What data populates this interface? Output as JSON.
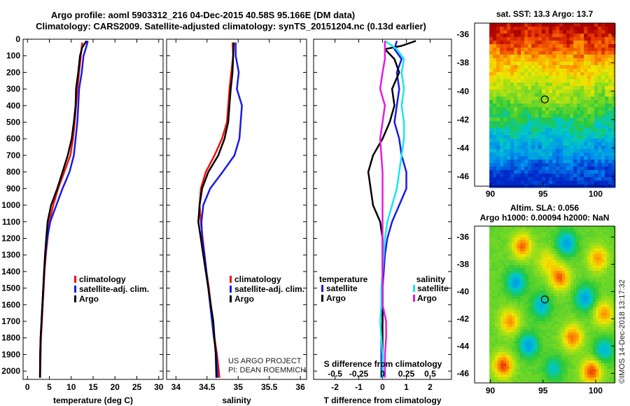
{
  "title": {
    "line1": "Argo profile: aoml 5903312_216 04-Dec-2015 40.58S 95.166E (DM data)",
    "line2": "Climatology: CARS2009. Satellite-adjusted climatology: synTS_20151204.nc (0.13d earlier)"
  },
  "colors": {
    "climatology": "#ee1111",
    "satellite": "#1a1ae6",
    "argo": "#000000",
    "satellite_salinity": "#18e6f0",
    "argo_salinity": "#e61ae6"
  },
  "chart_data": [
    {
      "type": "line",
      "panel": "temperature",
      "xlabel": "temperature (deg C)",
      "ylabel": "",
      "xlim": [
        -1,
        31
      ],
      "ylim": [
        2050,
        0
      ],
      "x_ticks": [
        "0",
        "5",
        "10",
        "15",
        "20",
        "25",
        "30"
      ],
      "y_ticks": [
        "0",
        "100",
        "200",
        "300",
        "400",
        "500",
        "600",
        "700",
        "800",
        "900",
        "1000",
        "1100",
        "1200",
        "1300",
        "1400",
        "1500",
        "1600",
        "1700",
        "1800",
        "1900",
        "2000"
      ],
      "legend": [
        "climatology",
        "satellite-adj. clim.",
        "Argo"
      ],
      "series": [
        {
          "name": "climatology",
          "color": "#ee1111",
          "points": [
            [
              12.5,
              20
            ],
            [
              12.2,
              100
            ],
            [
              11.8,
              200
            ],
            [
              11.4,
              300
            ],
            [
              11.1,
              400
            ],
            [
              10.8,
              500
            ],
            [
              10.4,
              600
            ],
            [
              9.8,
              700
            ],
            [
              8.4,
              800
            ],
            [
              7.0,
              900
            ],
            [
              5.9,
              1000
            ],
            [
              5.0,
              1100
            ],
            [
              4.6,
              1200
            ],
            [
              4.2,
              1300
            ],
            [
              3.9,
              1400
            ],
            [
              3.7,
              1500
            ],
            [
              3.5,
              1600
            ],
            [
              3.3,
              1700
            ],
            [
              3.1,
              1800
            ],
            [
              3.0,
              1900
            ],
            [
              2.9,
              2040
            ]
          ]
        },
        {
          "name": "satellite-adj. clim.",
          "color": "#1a1ae6",
          "points": [
            [
              13.8,
              10
            ],
            [
              13.4,
              50
            ],
            [
              12.8,
              100
            ],
            [
              12.4,
              200
            ],
            [
              11.8,
              300
            ],
            [
              11.6,
              400
            ],
            [
              11.4,
              500
            ],
            [
              11.0,
              600
            ],
            [
              10.6,
              700
            ],
            [
              9.6,
              800
            ],
            [
              8.0,
              900
            ],
            [
              6.6,
              1000
            ],
            [
              5.2,
              1100
            ],
            [
              4.5,
              1200
            ],
            [
              4.1,
              1300
            ],
            [
              3.8,
              1400
            ],
            [
              3.6,
              1500
            ],
            [
              3.4,
              1600
            ],
            [
              3.2,
              1700
            ],
            [
              3.0,
              1800
            ],
            [
              2.9,
              1900
            ],
            [
              2.85,
              2040
            ]
          ]
        },
        {
          "name": "Argo",
          "color": "#000000",
          "points": [
            [
              13.5,
              10
            ],
            [
              12.5,
              50
            ],
            [
              12.0,
              100
            ],
            [
              11.6,
              200
            ],
            [
              11.1,
              300
            ],
            [
              11.0,
              400
            ],
            [
              10.6,
              500
            ],
            [
              10.1,
              600
            ],
            [
              9.2,
              700
            ],
            [
              8.0,
              800
            ],
            [
              6.8,
              900
            ],
            [
              5.4,
              1000
            ],
            [
              4.6,
              1100
            ],
            [
              4.3,
              1200
            ],
            [
              4.0,
              1300
            ],
            [
              3.8,
              1400
            ],
            [
              3.6,
              1500
            ],
            [
              3.4,
              1600
            ],
            [
              3.2,
              1700
            ],
            [
              3.0,
              1800
            ],
            [
              2.9,
              1900
            ],
            [
              2.85,
              2040
            ]
          ]
        }
      ]
    },
    {
      "type": "line",
      "panel": "salinity",
      "xlabel": "salinity",
      "ylabel": "",
      "xlim": [
        33.85,
        36.1
      ],
      "ylim": [
        2050,
        0
      ],
      "x_ticks": [
        "34",
        "34.5",
        "35",
        "35.5",
        "36"
      ],
      "legend": [
        "climatology",
        "satellite-adj. clim.",
        "Argo"
      ],
      "series": [
        {
          "name": "climatology",
          "color": "#ee1111",
          "points": [
            [
              34.91,
              20
            ],
            [
              34.92,
              100
            ],
            [
              34.89,
              200
            ],
            [
              34.86,
              300
            ],
            [
              34.84,
              400
            ],
            [
              34.82,
              500
            ],
            [
              34.74,
              600
            ],
            [
              34.62,
              700
            ],
            [
              34.48,
              800
            ],
            [
              34.4,
              900
            ],
            [
              34.38,
              1000
            ],
            [
              34.4,
              1100
            ],
            [
              34.43,
              1200
            ],
            [
              34.46,
              1300
            ],
            [
              34.49,
              1400
            ],
            [
              34.53,
              1500
            ],
            [
              34.56,
              1600
            ],
            [
              34.59,
              1700
            ],
            [
              34.62,
              1800
            ],
            [
              34.66,
              1900
            ],
            [
              34.7,
              2040
            ]
          ]
        },
        {
          "name": "satellite-adj. clim.",
          "color": "#1a1ae6",
          "points": [
            [
              34.96,
              20
            ],
            [
              34.96,
              100
            ],
            [
              35.01,
              200
            ],
            [
              34.98,
              300
            ],
            [
              35.06,
              400
            ],
            [
              35.04,
              500
            ],
            [
              35.02,
              600
            ],
            [
              34.94,
              700
            ],
            [
              34.75,
              800
            ],
            [
              34.55,
              900
            ],
            [
              34.44,
              1000
            ],
            [
              34.41,
              1100
            ],
            [
              34.42,
              1200
            ],
            [
              34.46,
              1300
            ],
            [
              34.49,
              1400
            ],
            [
              34.52,
              1500
            ],
            [
              34.55,
              1600
            ],
            [
              34.58,
              1700
            ],
            [
              34.61,
              1800
            ],
            [
              34.65,
              1900
            ],
            [
              34.67,
              2040
            ]
          ]
        },
        {
          "name": "Argo",
          "color": "#000000",
          "points": [
            [
              34.93,
              20
            ],
            [
              34.92,
              100
            ],
            [
              34.91,
              200
            ],
            [
              34.88,
              300
            ],
            [
              34.86,
              400
            ],
            [
              34.84,
              500
            ],
            [
              34.78,
              600
            ],
            [
              34.68,
              700
            ],
            [
              34.52,
              800
            ],
            [
              34.42,
              900
            ],
            [
              34.38,
              1000
            ],
            [
              34.36,
              1100
            ],
            [
              34.4,
              1200
            ],
            [
              34.44,
              1300
            ],
            [
              34.48,
              1400
            ],
            [
              34.52,
              1500
            ],
            [
              34.56,
              1600
            ],
            [
              34.6,
              1700
            ],
            [
              34.62,
              1800
            ],
            [
              34.64,
              1900
            ],
            [
              34.65,
              2040
            ]
          ]
        }
      ]
    },
    {
      "type": "line",
      "panel": "difference",
      "xlabel": "T difference from climatology",
      "x2label": "S difference from climatology",
      "ylabel": "",
      "xlim": [
        -2.9,
        2.9
      ],
      "ylim": [
        2050,
        0
      ],
      "x_ticks": [
        "-2",
        "-1",
        "0",
        "1",
        "2"
      ],
      "x2_ticks": [
        "-0.5",
        "-0.25",
        "0",
        "0.25",
        "0.5"
      ],
      "legend_left_title": "temperature",
      "legend_right_title": "salinity",
      "legend_left": [
        "satellite",
        "Argo"
      ],
      "legend_right": [
        "satellite",
        "Argo"
      ],
      "series": [
        {
          "name": "satellite",
          "group": "temperature",
          "color": "#1a1ae6",
          "points": [
            [
              0.6,
              10
            ],
            [
              0.5,
              60
            ],
            [
              0.8,
              120
            ],
            [
              0.6,
              200
            ],
            [
              0.7,
              300
            ],
            [
              0.6,
              400
            ],
            [
              0.5,
              500
            ],
            [
              0.7,
              600
            ],
            [
              0.8,
              700
            ],
            [
              1.0,
              800
            ],
            [
              1.0,
              900
            ],
            [
              0.7,
              1000
            ],
            [
              0.4,
              1100
            ],
            [
              0.2,
              1200
            ],
            [
              0.1,
              1300
            ],
            [
              0.05,
              1400
            ],
            [
              0.0,
              1500
            ],
            [
              0.0,
              1600
            ],
            [
              0.0,
              1700
            ],
            [
              -0.05,
              1800
            ],
            [
              -0.05,
              1900
            ],
            [
              -0.05,
              2040
            ]
          ]
        },
        {
          "name": "Argo",
          "group": "temperature",
          "color": "#000000",
          "points": [
            [
              1.4,
              10
            ],
            [
              0.8,
              40
            ],
            [
              0.1,
              60
            ],
            [
              0.5,
              120
            ],
            [
              0.7,
              200
            ],
            [
              0.4,
              300
            ],
            [
              0.5,
              400
            ],
            [
              0.3,
              500
            ],
            [
              0.0,
              600
            ],
            [
              -0.4,
              700
            ],
            [
              -0.6,
              800
            ],
            [
              -0.5,
              900
            ],
            [
              -0.4,
              1000
            ],
            [
              -0.1,
              1100
            ],
            [
              0.0,
              1200
            ],
            [
              0.0,
              1300
            ],
            [
              0.0,
              1400
            ],
            [
              0.0,
              1500
            ],
            [
              0.0,
              1600
            ],
            [
              0.0,
              1700
            ],
            [
              0.0,
              1800
            ],
            [
              0.0,
              1900
            ],
            [
              0.0,
              2040
            ]
          ]
        },
        {
          "name": "satellite",
          "group": "salinity",
          "color": "#18e6f0",
          "points": [
            [
              0.1,
              10
            ],
            [
              0.6,
              60
            ],
            [
              0.9,
              120
            ],
            [
              0.8,
              200
            ],
            [
              0.9,
              300
            ],
            [
              0.8,
              400
            ],
            [
              0.9,
              500
            ],
            [
              0.9,
              600
            ],
            [
              0.8,
              700
            ],
            [
              0.7,
              800
            ],
            [
              0.6,
              900
            ],
            [
              0.4,
              1000
            ],
            [
              0.2,
              1100
            ],
            [
              0.1,
              1200
            ],
            [
              0.05,
              1300
            ],
            [
              0.0,
              1400
            ],
            [
              -0.05,
              1500
            ],
            [
              -0.05,
              1600
            ],
            [
              -0.1,
              1700
            ],
            [
              -0.05,
              1800
            ],
            [
              0.0,
              1900
            ],
            [
              0.0,
              2040
            ]
          ]
        },
        {
          "name": "Argo",
          "group": "salinity",
          "color": "#e61ae6",
          "points": [
            [
              0.1,
              10
            ],
            [
              0.1,
              60
            ],
            [
              0.1,
              120
            ],
            [
              0.0,
              200
            ],
            [
              -0.1,
              300
            ],
            [
              0.1,
              400
            ],
            [
              0.0,
              500
            ],
            [
              -0.1,
              600
            ],
            [
              -0.05,
              700
            ],
            [
              0.0,
              800
            ],
            [
              0.0,
              900
            ],
            [
              0.0,
              1000
            ],
            [
              0.0,
              1100
            ],
            [
              0.0,
              1200
            ],
            [
              0.0,
              1300
            ],
            [
              0.0,
              1400
            ],
            [
              0.0,
              1500
            ],
            [
              0.0,
              1600
            ],
            [
              0.15,
              1700
            ],
            [
              0.15,
              1800
            ],
            [
              0.1,
              1900
            ],
            [
              0.1,
              2040
            ]
          ]
        }
      ]
    },
    {
      "type": "heatmap",
      "panel": "sst-map",
      "title": "sat. SST: 13.3  Argo: 13.7",
      "xlim": [
        88.5,
        101.8
      ],
      "ylim": [
        -46.7,
        -35.2
      ],
      "x_ticks": [
        "90",
        "95",
        "100"
      ],
      "y_ticks": [
        "-36",
        "-38",
        "-40",
        "-42",
        "-44",
        "-46"
      ],
      "marker": [
        95.17,
        -40.58
      ]
    },
    {
      "type": "heatmap",
      "panel": "sla-map",
      "title": "Altim. SLA: 0.056",
      "subtitle": "Argo h1000: 0.00094 h2000: NaN",
      "xlim": [
        88.5,
        101.8
      ],
      "ylim": [
        -46.7,
        -35.2
      ],
      "x_ticks": [
        "90",
        "95",
        "100"
      ],
      "y_ticks": [
        "-36",
        "-38",
        "-40",
        "-42",
        "-44",
        "-46"
      ],
      "marker": [
        95.17,
        -40.58
      ]
    }
  ],
  "credits": {
    "project": "US ARGO PROJECT",
    "pi": "PI: DEAN ROEMMICH",
    "imos": "©IMOS 14-Dec-2018 13:17:32"
  }
}
